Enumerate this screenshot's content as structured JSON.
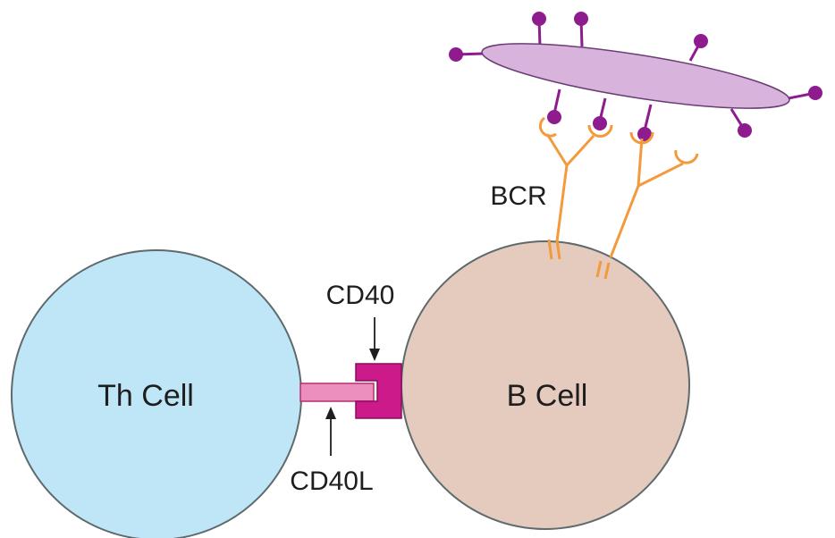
{
  "diagram": {
    "th_cell_label": "Th Cell",
    "b_cell_label": "B Cell",
    "cd40_label": "CD40",
    "cd40l_label": "CD40L",
    "bcr_label": "BCR"
  },
  "colors": {
    "th_cell_fill": "#bfe6f7",
    "b_cell_fill": "#e5cbbd",
    "cell_stroke": "#5e6a6d",
    "cd40": "#cc1a8a",
    "cd40l": "#ec8fbe",
    "bcr": "#f39a3c",
    "antigen_body": "#d8b4dc",
    "antigen_epitope": "#8e1c8e",
    "arrow": "#1e1e1e"
  }
}
